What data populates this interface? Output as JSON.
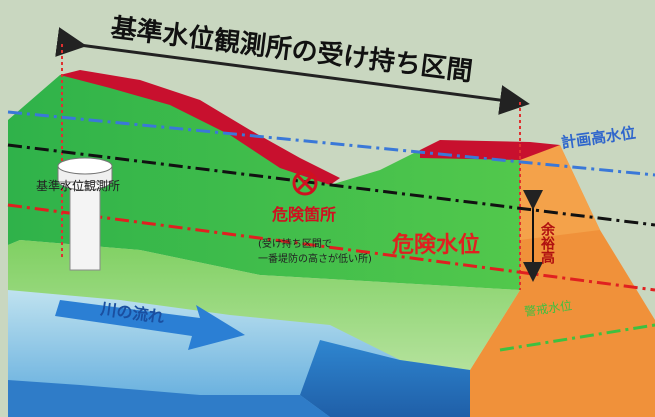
{
  "title": "基準水位観測所の受け持ち区間",
  "labels": {
    "planned_high_water": "計画高水位",
    "gauge_station": "基準水位観測所",
    "danger_spot": "危険箇所",
    "danger_spot_note_1": "(受け持ち区間で",
    "danger_spot_note_2": "一番堤防の高さが低い所)",
    "danger_water_level": "危険水位",
    "freeboard": "余裕高",
    "flood_alert_level": "警戒水位",
    "river_flow": "川の流れ"
  },
  "colors": {
    "levee_green": "#3fbf4a",
    "danger_red": "#c8102e",
    "river_blue": "#3b8fd6",
    "embankment_orange": "#f0913a",
    "planned_line_blue": "#3a78d8"
  }
}
